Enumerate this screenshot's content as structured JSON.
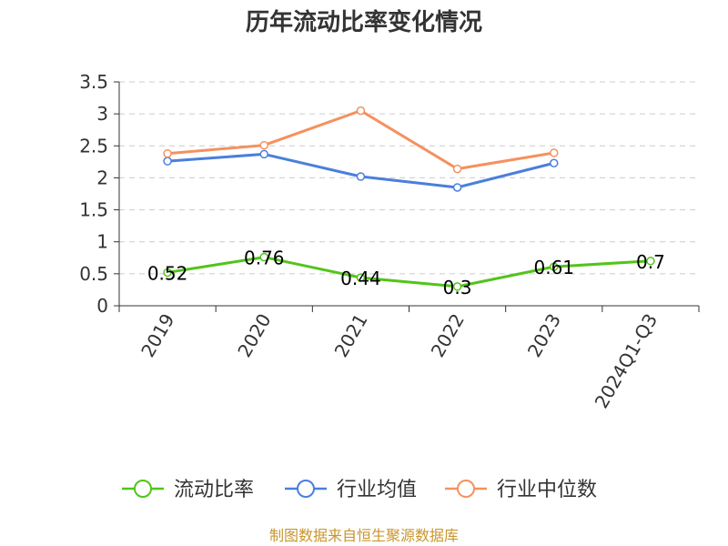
{
  "chart_data": {
    "type": "line",
    "title": "历年流动比率变化情况",
    "categories": [
      "2019",
      "2020",
      "2021",
      "2022",
      "2023",
      "2024Q1-Q3"
    ],
    "ylim": [
      0,
      3.5
    ],
    "yticks": [
      "0",
      "0.5",
      "1",
      "1.5",
      "2",
      "2.5",
      "3",
      "3.5"
    ],
    "grid": true,
    "legend_position": "bottom",
    "series": [
      {
        "name": "流动比率",
        "color": "#52c41a",
        "values": [
          0.52,
          0.76,
          0.44,
          0.3,
          0.61,
          0.7
        ],
        "labels": [
          "0.52",
          "0.76",
          "0.44",
          "0.3",
          "0.61",
          "0.7"
        ]
      },
      {
        "name": "行业均值",
        "color": "#4a7fdc",
        "values": [
          2.26,
          2.37,
          2.02,
          1.85,
          2.23,
          null
        ]
      },
      {
        "name": "行业中位数",
        "color": "#f5915e",
        "values": [
          2.38,
          2.51,
          3.05,
          2.14,
          2.39,
          null
        ]
      }
    ]
  },
  "source_text": "制图数据来自恒生聚源数据库"
}
